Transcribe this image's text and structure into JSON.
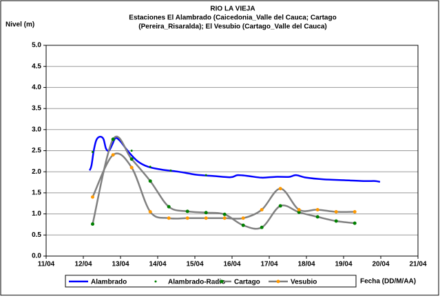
{
  "chart_data": {
    "type": "line",
    "title": [
      "RIO LA VIEJA",
      "Estaciones El Alambrado (Caicedonia_Valle del Cauca; Cartago",
      "(Pereira_Risaralda);  El Vesubio (Cartago_Valle del Cauca)"
    ],
    "y_label": "Nivel (m)",
    "x_label": "Fecha (DD/M/AA)",
    "xlim": [
      11,
      21
    ],
    "xticks": [
      {
        "value": 11,
        "label": "11/04"
      },
      {
        "value": 12,
        "label": "12/04"
      },
      {
        "value": 13,
        "label": "13/04"
      },
      {
        "value": 14,
        "label": "14/04"
      },
      {
        "value": 15,
        "label": "15/04"
      },
      {
        "value": 16,
        "label": "16/04"
      },
      {
        "value": 17,
        "label": "17/04"
      },
      {
        "value": 18,
        "label": "18/04"
      },
      {
        "value": 19,
        "label": "19/04"
      },
      {
        "value": 20,
        "label": "20/04"
      },
      {
        "value": 21,
        "label": "21/04"
      }
    ],
    "ylim": [
      0,
      5
    ],
    "yticks": [
      {
        "value": 0,
        "label": "0.0"
      },
      {
        "value": 0.5,
        "label": "0.5"
      },
      {
        "value": 1,
        "label": "1.0"
      },
      {
        "value": 1.5,
        "label": "1.5"
      },
      {
        "value": 2,
        "label": "2.0"
      },
      {
        "value": 2.5,
        "label": "2.5"
      },
      {
        "value": 3,
        "label": "3.0"
      },
      {
        "value": 3.5,
        "label": "3.5"
      },
      {
        "value": 4,
        "label": "4.0"
      },
      {
        "value": 4.5,
        "label": "4.5"
      },
      {
        "value": 5,
        "label": "5.0"
      }
    ],
    "grid": true,
    "series": [
      {
        "name": "Alambrado",
        "color": "#0000ff",
        "line": true,
        "marker_color": null,
        "x": [
          12.17,
          12.22,
          12.28,
          12.35,
          12.44,
          12.54,
          12.61,
          12.69,
          12.78,
          12.87,
          13.0,
          13.19,
          13.46,
          13.74,
          14.11,
          14.57,
          15.04,
          15.5,
          15.96,
          16.15,
          16.43,
          16.8,
          17.17,
          17.54,
          17.72,
          18.0,
          18.46,
          19.02,
          19.57,
          19.85,
          19.98
        ],
        "values": [
          2.03,
          2.15,
          2.5,
          2.75,
          2.83,
          2.78,
          2.55,
          2.5,
          2.65,
          2.8,
          2.72,
          2.5,
          2.25,
          2.12,
          2.05,
          2.0,
          1.93,
          1.9,
          1.87,
          1.92,
          1.9,
          1.86,
          1.88,
          1.88,
          1.92,
          1.86,
          1.82,
          1.8,
          1.78,
          1.78,
          1.76
        ]
      },
      {
        "name": "Alambrado-Radio",
        "color": "#008000",
        "line": false,
        "marker_color": "#008000",
        "x": [
          12.25,
          12.8,
          13.3,
          13.8,
          14.35,
          15.3
        ],
        "values": [
          2.47,
          2.77,
          2.5,
          2.12,
          2.03,
          1.92
        ]
      },
      {
        "name": "Cartago",
        "color": "#808080",
        "line": true,
        "marker_color": "#008000",
        "x": [
          12.25,
          12.8,
          13.3,
          13.8,
          14.3,
          14.8,
          15.3,
          15.8,
          16.3,
          16.8,
          17.3,
          17.8,
          18.3,
          18.8,
          19.3
        ],
        "values": [
          0.76,
          2.77,
          2.3,
          1.78,
          1.17,
          1.06,
          1.03,
          0.99,
          0.73,
          0.68,
          1.19,
          1.04,
          0.93,
          0.83,
          0.78
        ]
      },
      {
        "name": "Vesubio",
        "color": "#808080",
        "line": true,
        "marker_color": "#ff9900",
        "x": [
          12.25,
          12.8,
          13.3,
          13.8,
          14.3,
          14.8,
          15.3,
          15.8,
          16.3,
          16.8,
          17.3,
          17.8,
          18.3,
          18.8,
          19.3
        ],
        "values": [
          1.4,
          2.4,
          2.1,
          1.05,
          0.9,
          0.9,
          0.9,
          0.9,
          0.9,
          1.1,
          1.6,
          1.1,
          1.1,
          1.05,
          1.05
        ]
      }
    ]
  }
}
